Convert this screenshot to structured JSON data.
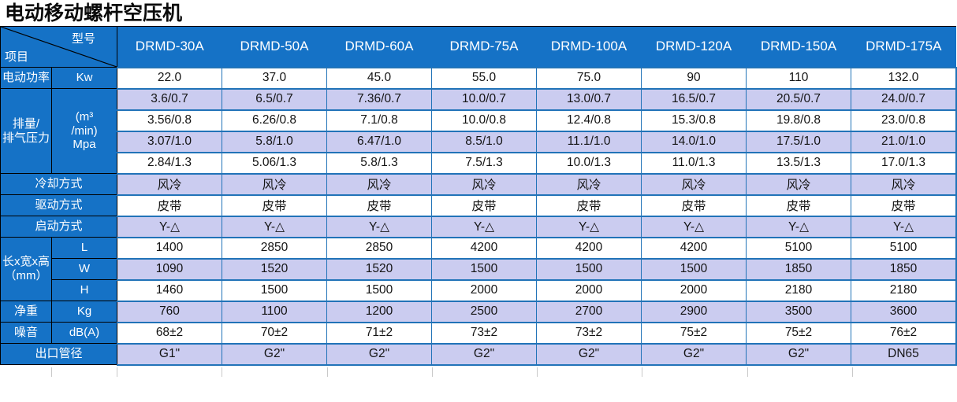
{
  "title": "电动移动螺杆空压机",
  "colors": {
    "header_blue": "#1572C6",
    "shade": "#CBCCF0",
    "border_blue": "#2173B8",
    "border_black": "#000000",
    "text_white": "#FFFFFF",
    "text_black": "#141414"
  },
  "table": {
    "corner": {
      "top_label": "型号",
      "bottom_label": "项目"
    },
    "models": [
      "DRMD-30A",
      "DRMD-50A",
      "DRMD-60A",
      "DRMD-75A",
      "DRMD-100A",
      "DRMD-120A",
      "DRMD-150A",
      "DRMD-175A"
    ],
    "rows": [
      {
        "labels": [
          {
            "text": "电动功率"
          },
          {
            "text": "Kw"
          }
        ],
        "values": [
          "22.0",
          "37.0",
          "45.0",
          "55.0",
          "75.0",
          "90",
          "110",
          "132.0"
        ]
      },
      {
        "labels": [
          {
            "text": "排量/\n排气压力",
            "rowspan": 4
          },
          {
            "text": "(m³\n/min)\nMpa",
            "rowspan": 4
          }
        ],
        "values": [
          "3.6/0.7",
          "6.5/0.7",
          "7.36/0.7",
          "10.0/0.7",
          "13.0/0.7",
          "16.5/0.7",
          "20.5/0.7",
          "24.0/0.7"
        ]
      },
      {
        "labels": [],
        "values": [
          "3.56/0.8",
          "6.26/0.8",
          "7.1/0.8",
          "10.0/0.8",
          "12.4/0.8",
          "15.3/0.8",
          "19.8/0.8",
          "23.0/0.8"
        ]
      },
      {
        "labels": [],
        "values": [
          "3.07/1.0",
          "5.8/1.0",
          "6.47/1.0",
          "8.5/1.0",
          "11.1/1.0",
          "14.0/1.0",
          "17.5/1.0",
          "21.0/1.0"
        ]
      },
      {
        "labels": [],
        "values": [
          "2.84/1.3",
          "5.06/1.3",
          "5.8/1.3",
          "7.5/1.3",
          "10.0/1.3",
          "11.0/1.3",
          "13.5/1.3",
          "17.0/1.3"
        ]
      },
      {
        "labels": [
          {
            "text": "冷却方式",
            "colspan": 2
          }
        ],
        "values": [
          "风冷",
          "风冷",
          "风冷",
          "风冷",
          "风冷",
          "风冷",
          "风冷",
          "风冷"
        ]
      },
      {
        "labels": [
          {
            "text": "驱动方式",
            "colspan": 2
          }
        ],
        "values": [
          "皮带",
          "皮带",
          "皮带",
          "皮带",
          "皮带",
          "皮带",
          "皮带",
          "皮带"
        ]
      },
      {
        "labels": [
          {
            "text": "启动方式",
            "colspan": 2
          }
        ],
        "values": [
          "Y-△",
          "Y-△",
          "Y-△",
          "Y-△",
          "Y-△",
          "Y-△",
          "Y-△",
          "Y-△"
        ]
      },
      {
        "labels": [
          {
            "text": "长x宽x高\n（mm）",
            "rowspan": 3
          },
          {
            "text": "L"
          }
        ],
        "values": [
          "1400",
          "2850",
          "2850",
          "4200",
          "4200",
          "4200",
          "5100",
          "5100"
        ]
      },
      {
        "labels": [
          {
            "text": "W"
          }
        ],
        "values": [
          "1090",
          "1520",
          "1520",
          "1500",
          "1500",
          "1500",
          "1850",
          "1850"
        ]
      },
      {
        "labels": [
          {
            "text": "H"
          }
        ],
        "values": [
          "1460",
          "1500",
          "1500",
          "2000",
          "2000",
          "2000",
          "2180",
          "2180"
        ]
      },
      {
        "labels": [
          {
            "text": "净重"
          },
          {
            "text": "Kg"
          }
        ],
        "values": [
          "760",
          "1100",
          "1200",
          "2500",
          "2700",
          "2900",
          "3500",
          "3600"
        ]
      },
      {
        "labels": [
          {
            "text": "噪音"
          },
          {
            "text": "dB(A)"
          }
        ],
        "values": [
          "68±2",
          "70±2",
          "71±2",
          "73±2",
          "73±2",
          "75±2",
          "75±2",
          "76±2"
        ]
      },
      {
        "labels": [
          {
            "text": "出口管径",
            "colspan": 2
          }
        ],
        "values": [
          "G1\"",
          "G2\"",
          "G2\"",
          "G2\"",
          "G2\"",
          "G2\"",
          "G2\"",
          "DN65"
        ]
      }
    ]
  }
}
